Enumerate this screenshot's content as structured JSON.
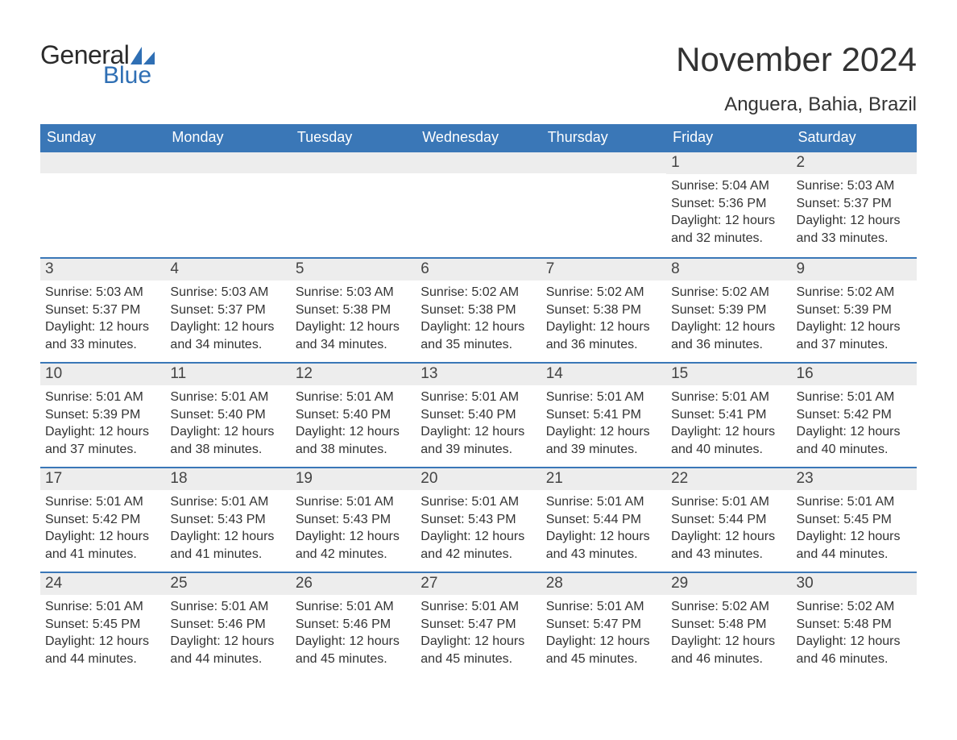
{
  "logo": {
    "text_general": "General",
    "text_blue": "Blue",
    "sail_color": "#2f6fb4"
  },
  "header": {
    "month_title": "November 2024",
    "location": "Anguera, Bahia, Brazil"
  },
  "colors": {
    "header_bar": "#3a77b7",
    "daynum_bg": "#ededed",
    "text": "#333333",
    "week_border": "#3a77b7"
  },
  "weekdays": [
    "Sunday",
    "Monday",
    "Tuesday",
    "Wednesday",
    "Thursday",
    "Friday",
    "Saturday"
  ],
  "labels": {
    "sunrise": "Sunrise: ",
    "sunset": "Sunset: ",
    "daylight": "Daylight: "
  },
  "weeks": [
    [
      null,
      null,
      null,
      null,
      null,
      {
        "n": "1",
        "sunrise": "5:04 AM",
        "sunset": "5:36 PM",
        "daylight": "12 hours and 32 minutes."
      },
      {
        "n": "2",
        "sunrise": "5:03 AM",
        "sunset": "5:37 PM",
        "daylight": "12 hours and 33 minutes."
      }
    ],
    [
      {
        "n": "3",
        "sunrise": "5:03 AM",
        "sunset": "5:37 PM",
        "daylight": "12 hours and 33 minutes."
      },
      {
        "n": "4",
        "sunrise": "5:03 AM",
        "sunset": "5:37 PM",
        "daylight": "12 hours and 34 minutes."
      },
      {
        "n": "5",
        "sunrise": "5:03 AM",
        "sunset": "5:38 PM",
        "daylight": "12 hours and 34 minutes."
      },
      {
        "n": "6",
        "sunrise": "5:02 AM",
        "sunset": "5:38 PM",
        "daylight": "12 hours and 35 minutes."
      },
      {
        "n": "7",
        "sunrise": "5:02 AM",
        "sunset": "5:38 PM",
        "daylight": "12 hours and 36 minutes."
      },
      {
        "n": "8",
        "sunrise": "5:02 AM",
        "sunset": "5:39 PM",
        "daylight": "12 hours and 36 minutes."
      },
      {
        "n": "9",
        "sunrise": "5:02 AM",
        "sunset": "5:39 PM",
        "daylight": "12 hours and 37 minutes."
      }
    ],
    [
      {
        "n": "10",
        "sunrise": "5:01 AM",
        "sunset": "5:39 PM",
        "daylight": "12 hours and 37 minutes."
      },
      {
        "n": "11",
        "sunrise": "5:01 AM",
        "sunset": "5:40 PM",
        "daylight": "12 hours and 38 minutes."
      },
      {
        "n": "12",
        "sunrise": "5:01 AM",
        "sunset": "5:40 PM",
        "daylight": "12 hours and 38 minutes."
      },
      {
        "n": "13",
        "sunrise": "5:01 AM",
        "sunset": "5:40 PM",
        "daylight": "12 hours and 39 minutes."
      },
      {
        "n": "14",
        "sunrise": "5:01 AM",
        "sunset": "5:41 PM",
        "daylight": "12 hours and 39 minutes."
      },
      {
        "n": "15",
        "sunrise": "5:01 AM",
        "sunset": "5:41 PM",
        "daylight": "12 hours and 40 minutes."
      },
      {
        "n": "16",
        "sunrise": "5:01 AM",
        "sunset": "5:42 PM",
        "daylight": "12 hours and 40 minutes."
      }
    ],
    [
      {
        "n": "17",
        "sunrise": "5:01 AM",
        "sunset": "5:42 PM",
        "daylight": "12 hours and 41 minutes."
      },
      {
        "n": "18",
        "sunrise": "5:01 AM",
        "sunset": "5:43 PM",
        "daylight": "12 hours and 41 minutes."
      },
      {
        "n": "19",
        "sunrise": "5:01 AM",
        "sunset": "5:43 PM",
        "daylight": "12 hours and 42 minutes."
      },
      {
        "n": "20",
        "sunrise": "5:01 AM",
        "sunset": "5:43 PM",
        "daylight": "12 hours and 42 minutes."
      },
      {
        "n": "21",
        "sunrise": "5:01 AM",
        "sunset": "5:44 PM",
        "daylight": "12 hours and 43 minutes."
      },
      {
        "n": "22",
        "sunrise": "5:01 AM",
        "sunset": "5:44 PM",
        "daylight": "12 hours and 43 minutes."
      },
      {
        "n": "23",
        "sunrise": "5:01 AM",
        "sunset": "5:45 PM",
        "daylight": "12 hours and 44 minutes."
      }
    ],
    [
      {
        "n": "24",
        "sunrise": "5:01 AM",
        "sunset": "5:45 PM",
        "daylight": "12 hours and 44 minutes."
      },
      {
        "n": "25",
        "sunrise": "5:01 AM",
        "sunset": "5:46 PM",
        "daylight": "12 hours and 44 minutes."
      },
      {
        "n": "26",
        "sunrise": "5:01 AM",
        "sunset": "5:46 PM",
        "daylight": "12 hours and 45 minutes."
      },
      {
        "n": "27",
        "sunrise": "5:01 AM",
        "sunset": "5:47 PM",
        "daylight": "12 hours and 45 minutes."
      },
      {
        "n": "28",
        "sunrise": "5:01 AM",
        "sunset": "5:47 PM",
        "daylight": "12 hours and 45 minutes."
      },
      {
        "n": "29",
        "sunrise": "5:02 AM",
        "sunset": "5:48 PM",
        "daylight": "12 hours and 46 minutes."
      },
      {
        "n": "30",
        "sunrise": "5:02 AM",
        "sunset": "5:48 PM",
        "daylight": "12 hours and 46 minutes."
      }
    ]
  ]
}
